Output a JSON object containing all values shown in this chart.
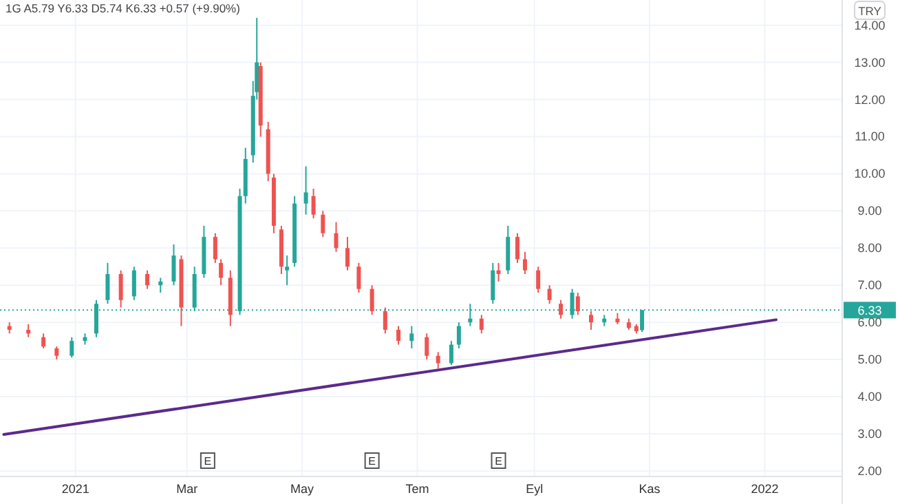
{
  "chart_data": {
    "type": "candlestick",
    "title": "1G  A5.79 Y6.33 D5.74 K6.33 +0.57 (+9.90%)",
    "ylabel": "TRY",
    "xlim": [
      "2020-11-22",
      "2022-02-11"
    ],
    "ylim": [
      1.85,
      14.68
    ],
    "xticks": [
      {
        "value": "2021-01-01",
        "label": "2021"
      },
      {
        "value": "2021-03-01",
        "label": "Mar"
      },
      {
        "value": "2021-05-01",
        "label": "May"
      },
      {
        "value": "2021-07-01",
        "label": "Tem"
      },
      {
        "value": "2021-09-01",
        "label": "Eyl"
      },
      {
        "value": "2021-11-01",
        "label": "Kas"
      },
      {
        "value": "2022-01-01",
        "label": "2022"
      }
    ],
    "yticks": [
      {
        "value": 2,
        "label": "2.00"
      },
      {
        "value": 3,
        "label": "3.00"
      },
      {
        "value": 4,
        "label": "4.00"
      },
      {
        "value": 5,
        "label": "5.00"
      },
      {
        "value": 6,
        "label": "6.00"
      },
      {
        "value": 7,
        "label": "7.00"
      },
      {
        "value": 8,
        "label": "8.00"
      },
      {
        "value": 9,
        "label": "9.00"
      },
      {
        "value": 10,
        "label": "10.00"
      },
      {
        "value": 11,
        "label": "11.00"
      },
      {
        "value": 12,
        "label": "12.00"
      },
      {
        "value": 13,
        "label": "13.00"
      },
      {
        "value": 14,
        "label": "14.00"
      }
    ],
    "grid": true,
    "x": [
      "2020-11-27",
      "2020-12-07",
      "2020-12-15",
      "2020-12-22",
      "2020-12-30",
      "2021-01-06",
      "2021-01-12",
      "2021-01-18",
      "2021-01-25",
      "2021-02-01",
      "2021-02-08",
      "2021-02-15",
      "2021-02-22",
      "2021-02-26",
      "2021-03-05",
      "2021-03-10",
      "2021-03-16",
      "2021-03-19",
      "2021-03-24",
      "2021-03-29",
      "2021-04-01",
      "2021-04-05",
      "2021-04-07",
      "2021-04-09",
      "2021-04-13",
      "2021-04-16",
      "2021-04-20",
      "2021-04-23",
      "2021-04-27",
      "2021-05-03",
      "2021-05-07",
      "2021-05-12",
      "2021-05-19",
      "2021-05-25",
      "2021-05-31",
      "2021-06-07",
      "2021-06-14",
      "2021-06-21",
      "2021-06-28",
      "2021-07-06",
      "2021-07-12",
      "2021-07-19",
      "2021-07-23",
      "2021-07-29",
      "2021-08-04",
      "2021-08-10",
      "2021-08-13",
      "2021-08-18",
      "2021-08-23",
      "2021-08-27",
      "2021-09-03",
      "2021-09-09",
      "2021-09-15",
      "2021-09-21",
      "2021-09-24",
      "2021-10-01",
      "2021-10-08",
      "2021-10-15",
      "2021-10-21",
      "2021-10-25",
      "2021-10-28"
    ],
    "ohlc": [
      [
        5.9,
        6.0,
        5.7,
        5.8
      ],
      [
        5.8,
        5.95,
        5.6,
        5.7
      ],
      [
        5.6,
        5.7,
        5.3,
        5.35
      ],
      [
        5.3,
        5.35,
        5.0,
        5.1
      ],
      [
        5.1,
        5.6,
        5.05,
        5.5
      ],
      [
        5.5,
        5.7,
        5.4,
        5.6
      ],
      [
        5.7,
        6.6,
        5.6,
        6.5
      ],
      [
        6.6,
        7.6,
        6.5,
        7.3
      ],
      [
        7.3,
        7.4,
        6.4,
        6.6
      ],
      [
        6.7,
        7.5,
        6.6,
        7.4
      ],
      [
        7.3,
        7.4,
        6.9,
        7.0
      ],
      [
        7.0,
        7.2,
        6.8,
        7.1
      ],
      [
        7.1,
        8.1,
        7.0,
        7.8
      ],
      [
        7.7,
        7.8,
        5.9,
        6.4
      ],
      [
        6.4,
        7.5,
        6.3,
        7.3
      ],
      [
        7.3,
        8.6,
        7.2,
        8.3
      ],
      [
        8.3,
        8.4,
        7.6,
        7.7
      ],
      [
        7.6,
        7.7,
        7.0,
        7.2
      ],
      [
        7.2,
        7.4,
        5.9,
        6.2
      ],
      [
        6.3,
        9.6,
        6.2,
        9.4
      ],
      [
        9.4,
        10.7,
        9.2,
        10.4
      ],
      [
        10.5,
        12.5,
        10.3,
        12.1
      ],
      [
        12.2,
        14.2,
        12.0,
        13.0
      ],
      [
        12.9,
        13.0,
        11.0,
        11.3
      ],
      [
        11.2,
        11.4,
        9.8,
        10.0
      ],
      [
        9.9,
        10.0,
        8.4,
        8.6
      ],
      [
        8.5,
        8.6,
        7.3,
        7.5
      ],
      [
        7.4,
        7.8,
        7.0,
        7.5
      ],
      [
        7.6,
        9.4,
        7.5,
        9.2
      ],
      [
        9.2,
        10.2,
        8.9,
        9.5
      ],
      [
        9.4,
        9.6,
        8.8,
        8.9
      ],
      [
        8.9,
        9.0,
        8.3,
        8.4
      ],
      [
        8.4,
        8.7,
        7.9,
        8.0
      ],
      [
        8.0,
        8.3,
        7.4,
        7.5
      ],
      [
        7.5,
        7.6,
        6.8,
        6.9
      ],
      [
        6.9,
        7.0,
        6.2,
        6.3
      ],
      [
        6.3,
        6.4,
        5.7,
        5.8
      ],
      [
        5.8,
        5.9,
        5.4,
        5.5
      ],
      [
        5.5,
        5.9,
        5.3,
        5.7
      ],
      [
        5.6,
        5.7,
        5.0,
        5.1
      ],
      [
        5.1,
        5.2,
        4.75,
        4.9
      ],
      [
        4.9,
        5.5,
        4.85,
        5.4
      ],
      [
        5.4,
        6.0,
        5.3,
        5.9
      ],
      [
        6.0,
        6.5,
        5.9,
        6.1
      ],
      [
        6.1,
        6.2,
        5.7,
        5.8
      ],
      [
        6.6,
        7.6,
        6.5,
        7.4
      ],
      [
        7.4,
        7.6,
        7.1,
        7.3
      ],
      [
        7.4,
        8.6,
        7.3,
        8.3
      ],
      [
        8.3,
        8.4,
        7.6,
        7.7
      ],
      [
        7.7,
        7.9,
        7.3,
        7.4
      ],
      [
        7.4,
        7.5,
        6.8,
        6.9
      ],
      [
        6.9,
        7.0,
        6.5,
        6.6
      ],
      [
        6.5,
        6.6,
        6.1,
        6.2
      ],
      [
        6.2,
        6.9,
        6.1,
        6.8
      ],
      [
        6.7,
        6.8,
        6.2,
        6.3
      ],
      [
        6.2,
        6.3,
        5.8,
        6.0
      ],
      [
        6.0,
        6.2,
        5.9,
        6.1
      ],
      [
        6.1,
        6.25,
        5.95,
        6.0
      ],
      [
        6.0,
        6.1,
        5.8,
        5.85
      ],
      [
        5.9,
        5.95,
        5.7,
        5.76
      ],
      [
        5.79,
        6.33,
        5.74,
        6.33
      ]
    ],
    "colors": [
      "#ef5350",
      "#ef5350",
      "#ef5350",
      "#ef5350",
      "#26a69a",
      "#26a69a",
      "#26a69a",
      "#26a69a",
      "#ef5350",
      "#26a69a",
      "#ef5350",
      "#26a69a",
      "#26a69a",
      "#ef5350",
      "#26a69a",
      "#26a69a",
      "#ef5350",
      "#ef5350",
      "#ef5350",
      "#26a69a",
      "#26a69a",
      "#26a69a",
      "#26a69a",
      "#ef5350",
      "#ef5350",
      "#ef5350",
      "#ef5350",
      "#26a69a",
      "#26a69a",
      "#26a69a",
      "#ef5350",
      "#ef5350",
      "#ef5350",
      "#ef5350",
      "#ef5350",
      "#ef5350",
      "#ef5350",
      "#ef5350",
      "#26a69a",
      "#ef5350",
      "#ef5350",
      "#26a69a",
      "#26a69a",
      "#26a69a",
      "#ef5350",
      "#26a69a",
      "#ef5350",
      "#26a69a",
      "#ef5350",
      "#ef5350",
      "#ef5350",
      "#ef5350",
      "#ef5350",
      "#26a69a",
      "#ef5350",
      "#ef5350",
      "#26a69a",
      "#ef5350",
      "#ef5350",
      "#ef5350",
      "#26a69a"
    ],
    "series": [
      {
        "type": "line",
        "color": "#5b2a8c",
        "x": [
          "2020-11-24",
          "2022-01-07"
        ],
        "values": [
          2.98,
          6.07
        ]
      }
    ],
    "ref_lines": [
      {
        "axis": "y",
        "value": 6.33,
        "label": "6.33",
        "color": "#26a69a",
        "line_style": "dotted"
      }
    ],
    "annotations": [
      {
        "text": "E",
        "x": "2021-03-12"
      },
      {
        "text": "E",
        "x": "2021-06-07"
      },
      {
        "text": "E",
        "x": "2021-08-13"
      }
    ]
  }
}
